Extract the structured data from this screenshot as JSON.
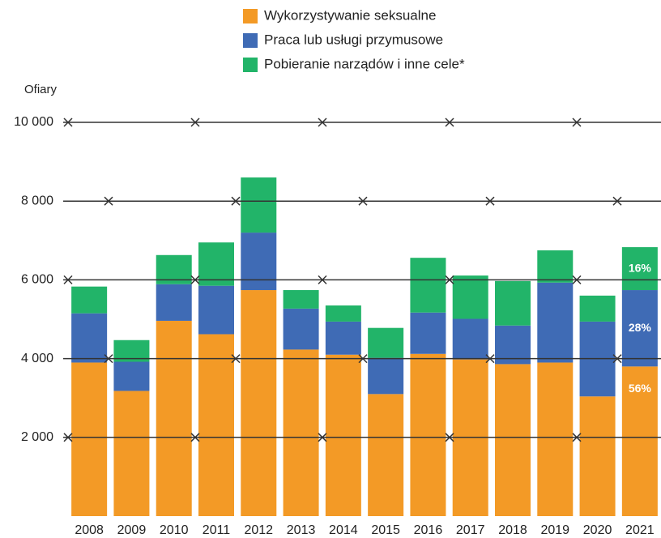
{
  "chart_data": {
    "type": "stacked-bar",
    "y_label": "Ofiary",
    "categories": [
      "2008",
      "2009",
      "2010",
      "2011",
      "2012",
      "2013",
      "2014",
      "2015",
      "2016",
      "2017",
      "2018",
      "2019",
      "2020",
      "2021"
    ],
    "series": [
      {
        "name": "Wykorzystywanie seksualne",
        "color": "#f39a26",
        "values": [
          3900,
          3180,
          4960,
          4620,
          5740,
          4230,
          4100,
          3100,
          4120,
          3980,
          3860,
          3900,
          3040,
          3800
        ]
      },
      {
        "name": "Praca lub usługi przymusowe",
        "color": "#3f6bb5",
        "values": [
          1250,
          740,
          930,
          1230,
          1460,
          1040,
          840,
          920,
          1050,
          1030,
          980,
          2030,
          1900,
          1940
        ]
      },
      {
        "name": "Pobieranie narządów i inne cele*",
        "color": "#22b469",
        "values": [
          680,
          550,
          740,
          1100,
          1400,
          470,
          410,
          760,
          1390,
          1100,
          1130,
          820,
          660,
          1090
        ]
      }
    ],
    "annotations": [
      "56%",
      "28%",
      "16%"
    ],
    "ylim": [
      0,
      10000
    ],
    "yticks": [
      {
        "value": 2000,
        "label": "2 000"
      },
      {
        "value": 4000,
        "label": "4 000"
      },
      {
        "value": 6000,
        "label": "6 000"
      },
      {
        "value": 8000,
        "label": "8 000"
      },
      {
        "value": 10000,
        "label": "10 000"
      }
    ],
    "grid": true,
    "legend": "top"
  }
}
